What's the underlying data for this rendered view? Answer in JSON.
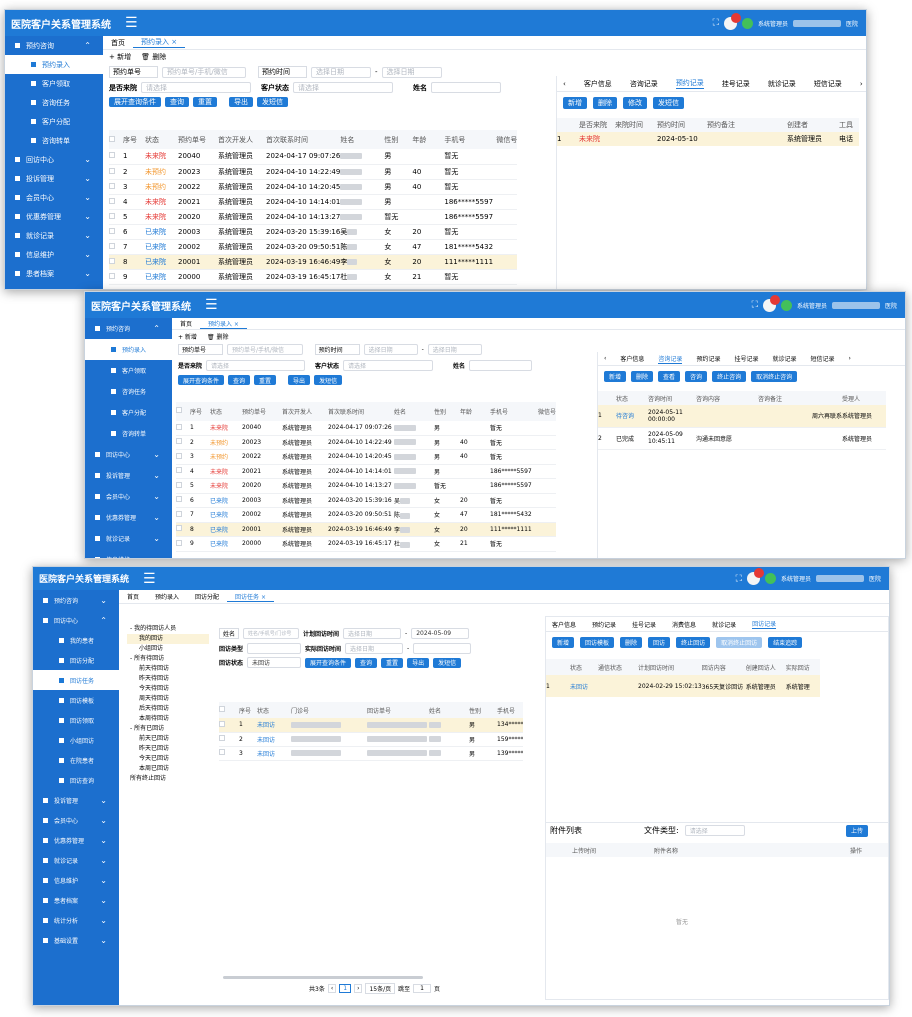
{
  "app": {
    "title": "医院客户关系管理系统",
    "user": "系统管理员",
    "hospital_suffix": "医院"
  },
  "colors": {
    "primary": "#1f7ad6",
    "sidebar": "#1c6fce",
    "highlight_row": "#fbf3d9",
    "red": "#e53935",
    "orange": "#f2962d"
  },
  "sidebar": {
    "groups": [
      {
        "label": "预约咨询",
        "icon": "calendar-icon"
      },
      {
        "label": "回访中心",
        "icon": "user-icon"
      },
      {
        "label": "投诉管理",
        "icon": "mail-icon"
      },
      {
        "label": "会员中心",
        "icon": "user-icon"
      },
      {
        "label": "优惠券管理",
        "icon": "ticket-icon"
      },
      {
        "label": "就诊记录",
        "icon": "record-icon"
      },
      {
        "label": "信息维护",
        "icon": "doc-icon"
      },
      {
        "label": "患者档案",
        "icon": "folder-icon"
      },
      {
        "label": "统计分析",
        "icon": "bar-chart-icon"
      },
      {
        "label": "基础设置",
        "icon": "gear-icon"
      }
    ],
    "booking_sub": [
      "预约录入",
      "客户领取",
      "咨询任务",
      "客户分配",
      "咨询转单"
    ],
    "followup_sub": [
      "我的患者",
      "回访分配",
      "回访任务",
      "回访模板",
      "回访领取",
      "小组回访",
      "在院患者",
      "回访查询"
    ]
  },
  "tabs1": [
    "首页",
    "预约录入 ×"
  ],
  "tabs3": [
    "首页",
    "预约录入",
    "回访分配",
    "回访任务 ×"
  ],
  "actions": {
    "add": "+ 新增",
    "delete": "🗑 删除"
  },
  "search": {
    "booking_no": "预约单号",
    "booking_no_placeholder": "预约单号/手机/微信",
    "booking_time": "预约时间",
    "date_placeholder": "选择日期",
    "came": "是否来院",
    "select_placeholder": "请选择",
    "customer_status": "客户状态",
    "name": "姓名",
    "expand": "展开查询条件",
    "query": "查询",
    "reset": "重置",
    "export": "导出",
    "sms": "发短信"
  },
  "table": {
    "headers": [
      "序号",
      "状态",
      "预约单号",
      "首次开发人",
      "首次联系时间",
      "姓名",
      "性别",
      "年龄",
      "手机号",
      "微信号"
    ],
    "rows": [
      {
        "idx": "1",
        "status": "未来院",
        "st": "red",
        "no": "20040",
        "dev": "系统管理员",
        "time": "2024-04-17 09:07:26",
        "name": "",
        "gender": "男",
        "age": "",
        "phone": "暂无"
      },
      {
        "idx": "2",
        "status": "未预约",
        "st": "orange",
        "no": "20023",
        "dev": "系统管理员",
        "time": "2024-04-10 14:22:49",
        "name": "",
        "gender": "男",
        "age": "40",
        "phone": "暂无"
      },
      {
        "idx": "3",
        "status": "未预约",
        "st": "orange",
        "no": "20022",
        "dev": "系统管理员",
        "time": "2024-04-10 14:20:45",
        "name": "",
        "gender": "男",
        "age": "40",
        "phone": "暂无"
      },
      {
        "idx": "4",
        "status": "未来院",
        "st": "red",
        "no": "20021",
        "dev": "系统管理员",
        "time": "2024-04-10 14:14:01",
        "name": "",
        "gender": "男",
        "age": "",
        "phone": "186*****5597"
      },
      {
        "idx": "5",
        "status": "未来院",
        "st": "red",
        "no": "20020",
        "dev": "系统管理员",
        "time": "2024-04-10 14:13:27",
        "name": "",
        "gender": "暂无",
        "age": "",
        "phone": "186*****5597"
      },
      {
        "idx": "6",
        "status": "已来院",
        "st": "blue",
        "no": "20003",
        "dev": "系统管理员",
        "time": "2024-03-20 15:39:16",
        "name": "吴",
        "gender": "女",
        "age": "20",
        "phone": "暂无"
      },
      {
        "idx": "7",
        "status": "已来院",
        "st": "blue",
        "no": "20002",
        "dev": "系统管理员",
        "time": "2024-03-20 09:50:51",
        "name": "陈",
        "gender": "女",
        "age": "47",
        "phone": "181*****5432"
      },
      {
        "idx": "8",
        "status": "已来院",
        "st": "blue",
        "no": "20001",
        "dev": "系统管理员",
        "time": "2024-03-19 16:46:49",
        "name": "李",
        "gender": "女",
        "age": "20",
        "phone": "111*****1111"
      },
      {
        "idx": "9",
        "status": "已来院",
        "st": "blue",
        "no": "20000",
        "dev": "系统管理员",
        "time": "2024-03-19 16:45:17",
        "name": "杜",
        "gender": "女",
        "age": "21",
        "phone": "暂无"
      }
    ]
  },
  "panel1": {
    "tabs": [
      "客户信息",
      "咨询记录",
      "预约记录",
      "挂号记录",
      "就诊记录",
      "短信记录"
    ],
    "active": 2,
    "buttons": [
      "新增",
      "删除",
      "修改",
      "发短信"
    ],
    "headers": [
      "是否来院",
      "来院时间",
      "预约时间",
      "预约备注",
      "创建者",
      "工具"
    ],
    "row": {
      "idx": "1",
      "came": "未来院",
      "time": "2024-05-10",
      "creator": "系统管理员",
      "tool": "电话"
    }
  },
  "panel2": {
    "tabs": [
      "客户信息",
      "咨询记录",
      "预约记录",
      "挂号记录",
      "就诊记录",
      "短信记录"
    ],
    "active": 1,
    "buttons": [
      "新增",
      "删除",
      "查看",
      "咨询",
      "终止咨询",
      "取消终止咨询"
    ],
    "headers": [
      "状态",
      "咨询时间",
      "咨询内容",
      "咨询备注",
      "受理人"
    ],
    "rows": [
      {
        "idx": "1",
        "status": "待咨询",
        "time": "2024-05-11 00:00:00",
        "content": "",
        "note": "周六再联系",
        "by": "系统管理员"
      },
      {
        "idx": "2",
        "status": "已完成",
        "time": "2024-05-09 10:45:11",
        "content": "沟通未回意愿",
        "note": "",
        "by": "系统管理员"
      }
    ]
  },
  "win3": {
    "tree": [
      {
        "t": "- 我的待回访人员",
        "lvl": 0
      },
      {
        "t": "我的回访",
        "lvl": 1,
        "hl": true
      },
      {
        "t": "小组回访",
        "lvl": 1
      },
      {
        "t": "- 所有待回访",
        "lvl": 0
      },
      {
        "t": "前天待回访",
        "lvl": 1
      },
      {
        "t": "昨天待回访",
        "lvl": 1
      },
      {
        "t": "今天待回访",
        "lvl": 1
      },
      {
        "t": "周天待回访",
        "lvl": 1
      },
      {
        "t": "后天待回访",
        "lvl": 1
      },
      {
        "t": "本周待回访",
        "lvl": 1
      },
      {
        "t": "- 所有已回访",
        "lvl": 0
      },
      {
        "t": "前天已回访",
        "lvl": 1
      },
      {
        "t": "昨天已回访",
        "lvl": 1
      },
      {
        "t": "今天已回访",
        "lvl": 1
      },
      {
        "t": "本周已回访",
        "lvl": 1
      },
      {
        "t": "所有终止回访",
        "lvl": 0
      }
    ],
    "search": {
      "name_sel": "姓名",
      "name_ph": "姓名/手机号/门诊号",
      "plan_time": "计划回访时间",
      "date_ph": "选择日期",
      "date_to": "2024-05-09",
      "type": "回访类型",
      "actual_time": "实际回访时间",
      "status": "回访状态",
      "status_val": "未回访",
      "expand": "展开查询条件",
      "query": "查询",
      "reset": "重置",
      "export": "导出",
      "sms": "发短信"
    },
    "headers": [
      "序号",
      "状态",
      "门诊号",
      "回访单号",
      "姓名",
      "性别",
      "手机号"
    ],
    "rows": [
      {
        "idx": "1",
        "status": "未回访",
        "gender": "男",
        "phone": "134*****"
      },
      {
        "idx": "2",
        "status": "未回访",
        "gender": "男",
        "phone": "159*****"
      },
      {
        "idx": "3",
        "status": "未回访",
        "gender": "男",
        "phone": "139*****"
      }
    ],
    "pager": {
      "total": "共3条",
      "page": "1",
      "size": "15条/页",
      "goto": "跳至",
      "page_unit": "页"
    },
    "panel_tabs": [
      "客户信息",
      "预约记录",
      "挂号记录",
      "消费信息",
      "就诊记录",
      "回访记录"
    ],
    "panel_buttons": [
      "新增",
      "回访模板",
      "删除",
      "回访",
      "终止回访",
      "取消终止回访",
      "结束追踪"
    ],
    "panel_headers": [
      "状态",
      "通信状态",
      "计划回访时间",
      "回访内容",
      "创建回访人",
      "实际回访"
    ],
    "panel_row": {
      "idx": "1",
      "status": "未回访",
      "time": "2024-02-29 15:02:13",
      "content": "365天复诊回访",
      "creator": "系统管理员",
      "actual": "系统管理"
    },
    "attach_title": "附件列表",
    "file_type": "文件类型:",
    "upload": "上传",
    "attach_headers": [
      "上传时间",
      "附件名称",
      "操作"
    ],
    "empty": "暂无"
  }
}
